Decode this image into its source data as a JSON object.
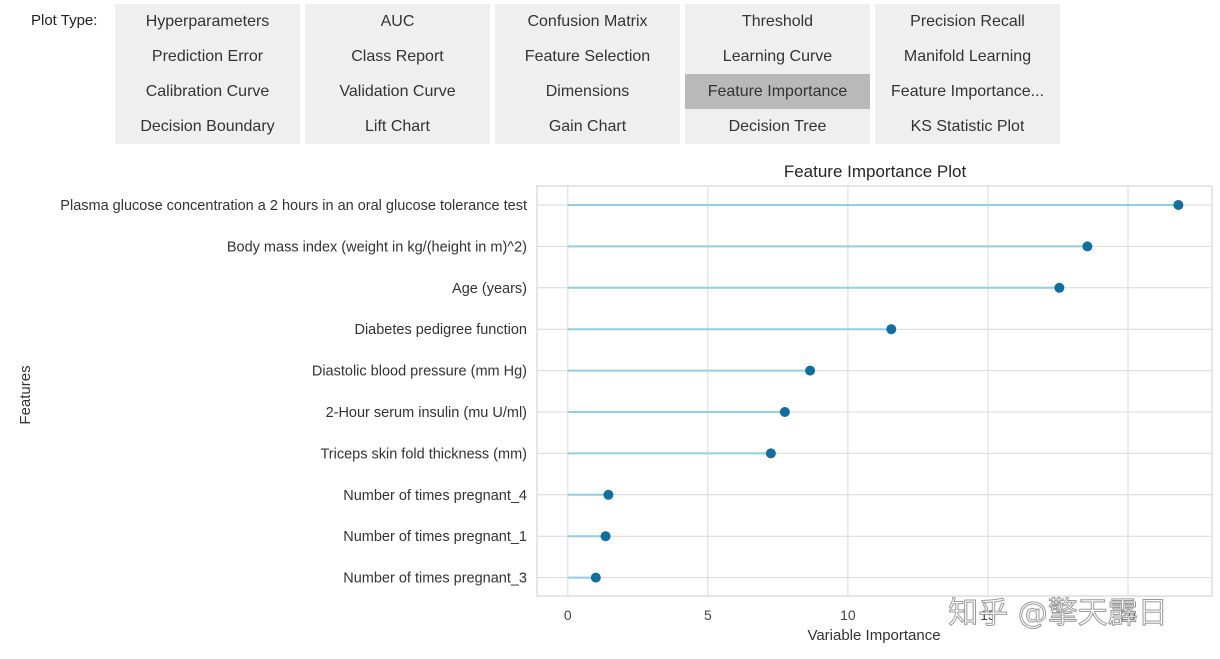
{
  "toolbar": {
    "label": "Plot Type:",
    "active_option": "Feature Importance",
    "options": [
      [
        "Hyperparameters",
        "AUC",
        "Confusion Matrix",
        "Threshold",
        "Precision Recall"
      ],
      [
        "Prediction Error",
        "Class Report",
        "Feature Selection",
        "Learning Curve",
        "Manifold Learning"
      ],
      [
        "Calibration Curve",
        "Validation Curve",
        "Dimensions",
        "Feature Importance",
        "Feature Importance..."
      ],
      [
        "Decision Boundary",
        "Lift Chart",
        "Gain Chart",
        "Decision Tree",
        "KS Statistic Plot"
      ]
    ]
  },
  "chart_data": {
    "type": "scatter",
    "style": "lollipop",
    "title": "Feature Importance Plot",
    "xlabel": "Variable Importance",
    "ylabel": "Features",
    "xlim": [
      -1.1,
      23.0
    ],
    "xticks": [
      0,
      5,
      10,
      15,
      20
    ],
    "grid": true,
    "categories": [
      "Plasma glucose concentration a 2 hours in an oral glucose tolerance test",
      "Body mass index (weight in kg/(height in m)^2)",
      "Age (years)",
      "Diabetes pedigree function",
      "Diastolic blood pressure (mm Hg)",
      "2-Hour serum insulin (mu U/ml)",
      "Triceps skin fold thickness (mm)",
      "Number of times pregnant_4",
      "Number of times pregnant_1",
      "Number of times pregnant_3"
    ],
    "values": [
      21.8,
      18.55,
      17.55,
      11.55,
      8.65,
      7.75,
      7.25,
      1.45,
      1.35,
      1.0
    ],
    "colors": {
      "stem": "#8ecfe0",
      "marker": "#0e6fa3",
      "grid": "#d9d9d9",
      "frame": "#cccccc"
    }
  },
  "watermark": "知乎 @擎天霹日"
}
